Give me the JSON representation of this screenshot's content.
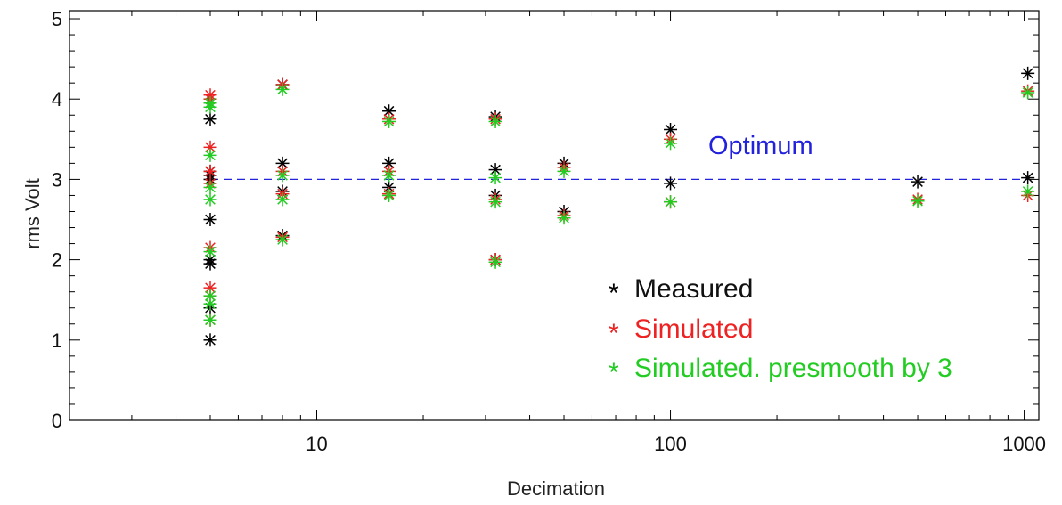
{
  "chart_data": {
    "type": "scatter",
    "title": "",
    "xlabel": "Decimation",
    "ylabel": "rms Volt",
    "x_scale": "log",
    "xlim": [
      2,
      1100
    ],
    "ylim": [
      0,
      5.1
    ],
    "x_ticks": [
      10,
      100,
      1000
    ],
    "x_tick_labels": [
      "10",
      "100",
      "1000"
    ],
    "y_ticks": [
      0,
      1,
      2,
      3,
      4,
      5
    ],
    "y_tick_labels": [
      "0",
      "1",
      "2",
      "3",
      "4",
      "5"
    ],
    "grid": false,
    "marker": "asterisk",
    "legend_placement": "lower-right",
    "legend_marker_text": "*",
    "series": [
      {
        "name": "Measured",
        "color": "#000000",
        "points": [
          [
            5,
            1.0
          ],
          [
            5,
            1.4
          ],
          [
            5,
            1.95
          ],
          [
            5,
            2.0
          ],
          [
            5,
            2.5
          ],
          [
            5,
            3.0
          ],
          [
            5,
            3.05
          ],
          [
            5,
            3.1
          ],
          [
            5,
            3.75
          ],
          [
            5,
            3.95
          ],
          [
            8,
            2.3
          ],
          [
            8,
            2.85
          ],
          [
            8,
            3.2
          ],
          [
            8,
            4.18
          ],
          [
            16,
            2.9
          ],
          [
            16,
            3.2
          ],
          [
            16,
            3.85
          ],
          [
            32,
            2.0
          ],
          [
            32,
            2.8
          ],
          [
            32,
            3.12
          ],
          [
            32,
            3.78
          ],
          [
            50,
            2.6
          ],
          [
            50,
            3.2
          ],
          [
            100,
            2.95
          ],
          [
            100,
            3.62
          ],
          [
            500,
            2.97
          ],
          [
            1024,
            3.02
          ],
          [
            1024,
            4.32
          ]
        ]
      },
      {
        "name": "Simulated",
        "color": "#ee2222",
        "points": [
          [
            5,
            1.25
          ],
          [
            5,
            1.55
          ],
          [
            5,
            1.65
          ],
          [
            5,
            2.15
          ],
          [
            5,
            2.95
          ],
          [
            5,
            3.1
          ],
          [
            5,
            3.4
          ],
          [
            5,
            4.0
          ],
          [
            5,
            4.05
          ],
          [
            8,
            2.28
          ],
          [
            8,
            2.82
          ],
          [
            8,
            3.1
          ],
          [
            8,
            4.18
          ],
          [
            16,
            2.82
          ],
          [
            16,
            3.1
          ],
          [
            16,
            3.75
          ],
          [
            32,
            2.0
          ],
          [
            32,
            2.75
          ],
          [
            32,
            3.75
          ],
          [
            50,
            2.55
          ],
          [
            50,
            3.15
          ],
          [
            100,
            2.72
          ],
          [
            100,
            3.5
          ],
          [
            500,
            2.75
          ],
          [
            1024,
            2.8
          ],
          [
            1024,
            4.1
          ]
        ]
      },
      {
        "name": "Simulated. presmooth by 3",
        "color": "#22cc22",
        "points": [
          [
            5,
            1.25
          ],
          [
            5,
            1.45
          ],
          [
            5,
            1.55
          ],
          [
            5,
            2.1
          ],
          [
            5,
            2.75
          ],
          [
            5,
            2.9
          ],
          [
            5,
            3.3
          ],
          [
            5,
            3.9
          ],
          [
            5,
            3.95
          ],
          [
            8,
            2.25
          ],
          [
            8,
            2.75
          ],
          [
            8,
            3.05
          ],
          [
            8,
            4.12
          ],
          [
            16,
            2.8
          ],
          [
            16,
            3.05
          ],
          [
            16,
            3.72
          ],
          [
            32,
            1.97
          ],
          [
            32,
            2.72
          ],
          [
            32,
            3.02
          ],
          [
            32,
            3.72
          ],
          [
            50,
            2.52
          ],
          [
            50,
            3.1
          ],
          [
            100,
            2.72
          ],
          [
            100,
            3.45
          ],
          [
            500,
            2.73
          ],
          [
            1024,
            2.85
          ],
          [
            1024,
            4.08
          ]
        ]
      }
    ],
    "reference_line": {
      "label": "Optimum",
      "y": 3.0,
      "color": "#2222dd",
      "style": "dashed",
      "x_from": 5,
      "x_to": 1024
    }
  }
}
